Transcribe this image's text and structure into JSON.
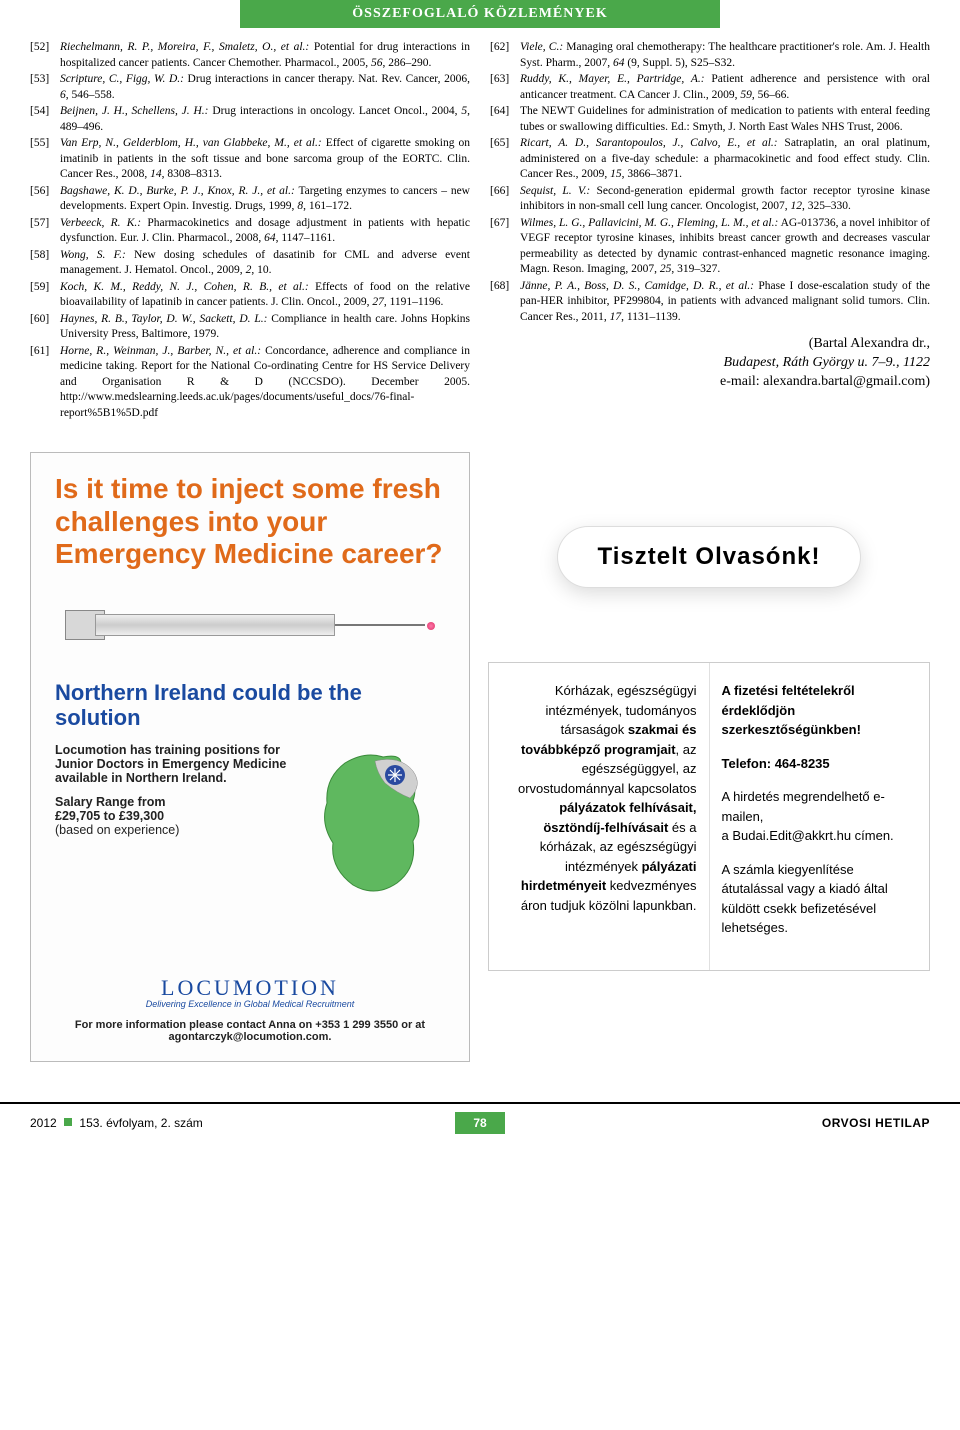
{
  "header": {
    "title": "ÖSSZEFOGLALÓ KÖZLEMÉNYEK"
  },
  "refs_left": [
    {
      "n": "[52]",
      "html": "<em>Riechelmann, R. P., Moreira, F., Smaletz, O., et al.:</em> Potential for drug interactions in hospitalized cancer patients. Cancer Chemother. Pharmacol., 2005, <em>56</em>, 286–290."
    },
    {
      "n": "[53]",
      "html": "<em>Scripture, C., Figg, W. D.:</em> Drug interactions in cancer therapy. Nat. Rev. Cancer, 2006, <em>6</em>, 546–558."
    },
    {
      "n": "[54]",
      "html": "<em>Beijnen, J. H., Schellens, J. H.:</em> Drug interactions in oncology. Lancet Oncol., 2004, <em>5</em>, 489–496."
    },
    {
      "n": "[55]",
      "html": "<em>Van Erp, N., Gelderblom, H., van Glabbeke, M., et al.:</em> Effect of cigarette smoking on imatinib in patients in the soft tissue and bone sarcoma group of the EORTC. Clin. Cancer Res., 2008, <em>14</em>, 8308–8313."
    },
    {
      "n": "[56]",
      "html": "<em>Bagshawe, K. D., Burke, P. J., Knox, R. J., et al.:</em> Targeting enzymes to cancers – new developments. Expert Opin. Investig. Drugs, 1999, <em>8</em>, 161–172."
    },
    {
      "n": "[57]",
      "html": "<em>Verbeeck, R. K.:</em> Pharmacokinetics and dosage adjustment in patients with hepatic dysfunction. Eur. J. Clin. Pharmacol., 2008, <em>64</em>, 1147–1161."
    },
    {
      "n": "[58]",
      "html": "<em>Wong, S. F.:</em> New dosing schedules of dasatinib for CML and adverse event management. J. Hematol. Oncol., 2009, <em>2</em>, 10."
    },
    {
      "n": "[59]",
      "html": "<em>Koch, K. M., Reddy, N. J., Cohen, R. B., et al.:</em> Effects of food on the relative bioavailability of lapatinib in cancer patients. J. Clin. Oncol., 2009, <em>27</em>, 1191–1196."
    },
    {
      "n": "[60]",
      "html": "<em>Haynes, R. B., Taylor, D. W., Sackett, D. L.:</em> Compliance in health care. Johns Hopkins University Press, Baltimore, 1979."
    },
    {
      "n": "[61]",
      "html": "<em>Horne, R., Weinman, J., Barber, N., et al.:</em> Concordance, adherence and compliance in medicine taking. Report for the National Co-ordinating Centre for HS Service Delivery and Organisation R &amp; D (NCCSDO). December 2005. http://www.medslearning.leeds.ac.uk/pages/documents/useful_docs/76-final-report%5B1%5D.pdf"
    }
  ],
  "refs_right": [
    {
      "n": "[62]",
      "html": "<em>Viele, C.:</em> Managing oral chemotherapy: The healthcare practitioner's role. Am. J. Health Syst. Pharm., 2007, <em>64</em> (9, Suppl. 5), S25–S32."
    },
    {
      "n": "[63]",
      "html": "<em>Ruddy, K., Mayer, E., Partridge, A.:</em> Patient adherence and persistence with oral anticancer treatment. CA Cancer J. Clin., 2009, <em>59</em>, 56–66."
    },
    {
      "n": "[64]",
      "html": "The NEWT Guidelines for administration of medication to patients with enteral feeding tubes or swallowing difficulties. Ed.: Smyth, J. North East Wales NHS Trust, 2006."
    },
    {
      "n": "[65]",
      "html": "<em>Ricart, A. D., Sarantopoulos, J., Calvo, E., et al.:</em> Satraplatin, an oral platinum, administered on a five-day schedule: a pharmacokinetic and food effect study. Clin. Cancer Res., 2009, <em>15</em>, 3866–3871."
    },
    {
      "n": "[66]",
      "html": "<em>Sequist, L. V.:</em> Second-generation epidermal growth factor receptor tyrosine kinase inhibitors in non-small cell lung cancer. Oncologist, 2007, <em>12</em>, 325–330."
    },
    {
      "n": "[67]",
      "html": "<em>Wilmes, L. G., Pallavicini, M. G., Fleming, L. M., et al.:</em> AG-013736, a novel inhibitor of VEGF receptor tyrosine kinases, inhibits breast cancer growth and decreases vascular permeability as detected by dynamic contrast-enhanced magnetic resonance imaging. Magn. Reson. Imaging, 2007, <em>25</em>, 319–327."
    },
    {
      "n": "[68]",
      "html": "<em>Jänne, P. A., Boss, D. S., Camidge, D. R., et al.:</em> Phase I dose-escalation study of the pan-HER inhibitor, PF299804, in patients with advanced malignant solid tumors. Clin. Cancer Res., 2011, <em>17</em>, 1131–1139."
    }
  ],
  "contact": {
    "line1": "(Bartal Alexandra dr.,",
    "line2": "Budapest, Ráth György u. 7–9., 1122",
    "line3": "e-mail: alexandra.bartal@gmail.com)"
  },
  "ad": {
    "headline": "Is it time to inject some fresh challenges into your Emergency Medicine career?",
    "sub": "Northern Ireland could be the solution",
    "p1a": "Locumotion has training positions for Junior Doctors in Emergency Medicine available in Northern Ireland.",
    "p2_label": "Salary Range from",
    "p2_value": "£29,705 to £39,300",
    "p2_note": "(based on experience)",
    "logo": "LOCUMOTION",
    "logo_sub": "Delivering Excellence in Global Medical Recruitment",
    "foot": "For more information please contact Anna on +353 1 299 3550 or at agontarczyk@locumotion.com."
  },
  "promo": {
    "pill": "Tisztelt Olvasónk!",
    "left_html": "Kórházak, egészségügyi intézmények, tudományos társaságok <b>szakmai és továbbképző programjait</b>, az egészségüggyel, az orvostudománnyal kapcsolatos <b>pályázatok felhívásait, ösztöndíj-felhívásait</b> és a kórházak, az egészségügyi intézmények <b>pályázati hirdetményeit</b> kedvezményes áron tudjuk közölni lapunkban.",
    "r1_html": "<b>A fizetési feltételekről érdeklődjön szerkesztőségünkben!</b>",
    "r2_html": "<b>Telefon: 464-8235</b>",
    "r3_html": "A hirdetés megrendelhető e-mailen,<br>a Budai.Edit@akkrt.hu címen.",
    "r4_html": "A számla kiegyenlítése átutalással vagy a kiadó által küldött csekk befizetésével lehetséges."
  },
  "footer": {
    "left_year": "2012",
    "left_issue": "153. évfolyam, 2. szám",
    "page": "78",
    "right": "ORVOSI HETILAP"
  },
  "colors": {
    "accent_green": "#4aa84a",
    "ad_orange": "#e06a1a",
    "ad_blue": "#1a4aa0"
  }
}
